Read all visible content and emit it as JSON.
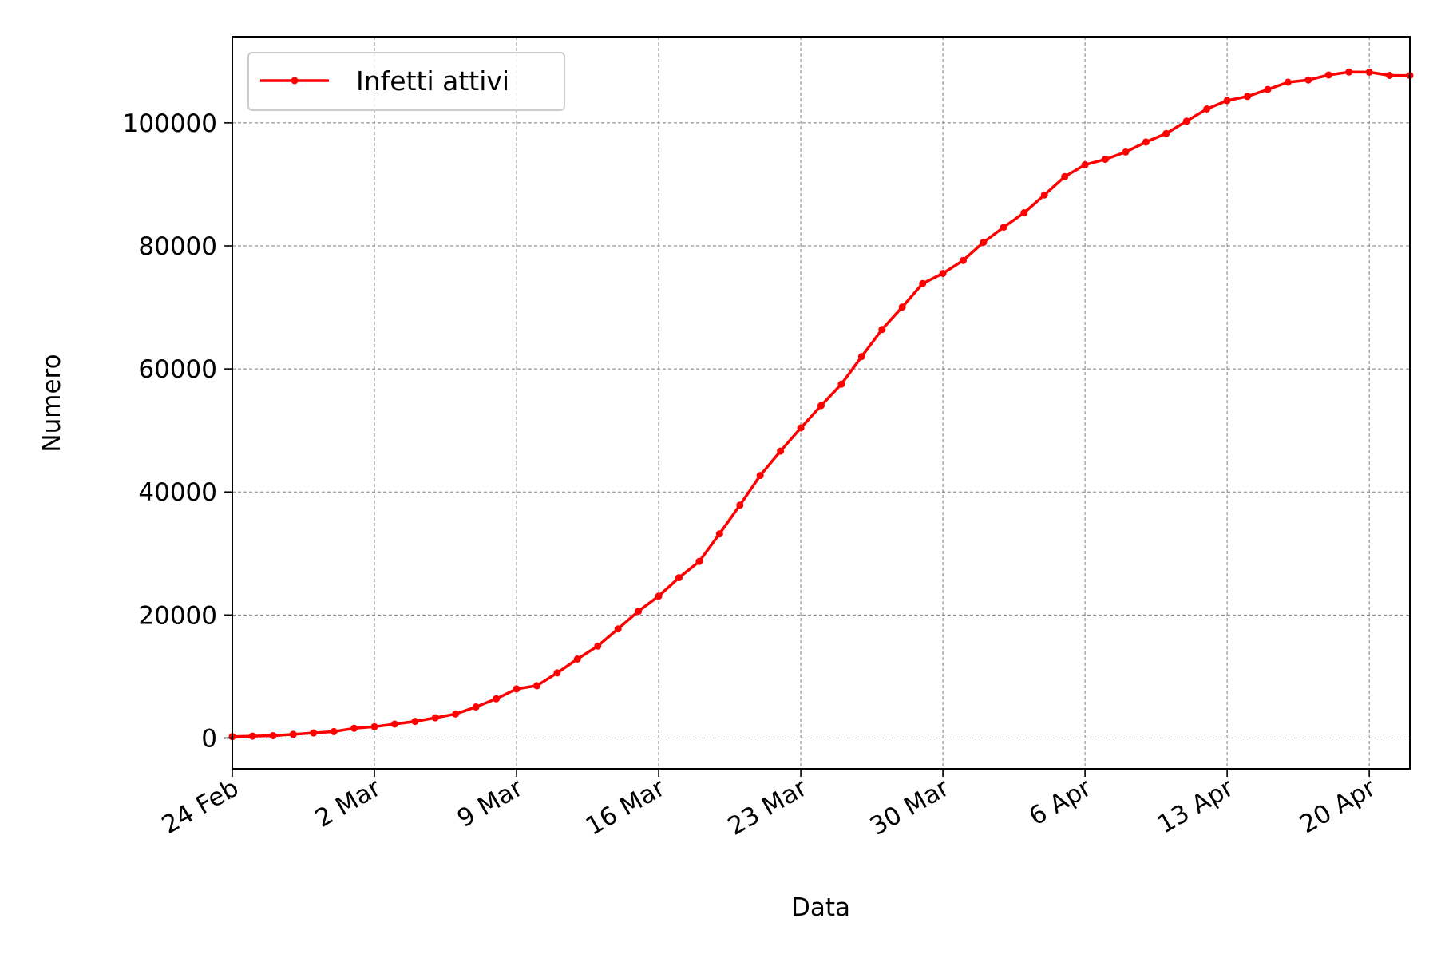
{
  "chart_data": {
    "type": "line",
    "xlabel": "Data",
    "ylabel": "Numero",
    "x_tick_labels": [
      "24 Feb",
      "2 Mar",
      "9 Mar",
      "16 Mar",
      "23 Mar",
      "30 Mar",
      "6 Apr",
      "13 Apr",
      "20 Apr"
    ],
    "y_tick_labels": [
      "0",
      "20000",
      "40000",
      "60000",
      "80000",
      "100000"
    ],
    "y_ticks": [
      0,
      20000,
      40000,
      60000,
      80000,
      100000
    ],
    "ylim": [
      -5000,
      114000
    ],
    "xlim": [
      "2020-02-24",
      "2020-04-22"
    ],
    "grid": true,
    "legend_position": "upper left",
    "x": [
      "2020-02-24",
      "2020-02-25",
      "2020-02-26",
      "2020-02-27",
      "2020-02-28",
      "2020-02-29",
      "2020-03-01",
      "2020-03-02",
      "2020-03-03",
      "2020-03-04",
      "2020-03-05",
      "2020-03-06",
      "2020-03-07",
      "2020-03-08",
      "2020-03-09",
      "2020-03-10",
      "2020-03-11",
      "2020-03-12",
      "2020-03-13",
      "2020-03-14",
      "2020-03-15",
      "2020-03-16",
      "2020-03-17",
      "2020-03-18",
      "2020-03-19",
      "2020-03-20",
      "2020-03-21",
      "2020-03-22",
      "2020-03-23",
      "2020-03-24",
      "2020-03-25",
      "2020-03-26",
      "2020-03-27",
      "2020-03-28",
      "2020-03-29",
      "2020-03-30",
      "2020-03-31",
      "2020-04-01",
      "2020-04-02",
      "2020-04-03",
      "2020-04-04",
      "2020-04-05",
      "2020-04-06",
      "2020-04-07",
      "2020-04-08",
      "2020-04-09",
      "2020-04-10",
      "2020-04-11",
      "2020-04-12",
      "2020-04-13",
      "2020-04-14",
      "2020-04-15",
      "2020-04-16",
      "2020-04-17",
      "2020-04-18",
      "2020-04-19",
      "2020-04-20",
      "2020-04-21",
      "2020-04-22"
    ],
    "series": [
      {
        "name": "Infetti attivi",
        "color": "#ff0000",
        "marker": "circle",
        "values": [
          221,
          311,
          385,
          588,
          821,
          1049,
          1577,
          1835,
          2263,
          2706,
          3296,
          3916,
          5061,
          6387,
          7985,
          8514,
          10590,
          12839,
          14955,
          17750,
          20603,
          23073,
          26062,
          28710,
          33190,
          37860,
          42681,
          46638,
          50418,
          54030,
          57521,
          62013,
          66414,
          70065,
          73880,
          75528,
          77635,
          80572,
          83049,
          85388,
          88274,
          91246,
          93187,
          94067,
          95262,
          96877,
          98273,
          100269,
          102253,
          103616,
          104291,
          105418,
          106607,
          106962,
          107771,
          108257,
          108237,
          107709,
          107699
        ]
      }
    ]
  }
}
